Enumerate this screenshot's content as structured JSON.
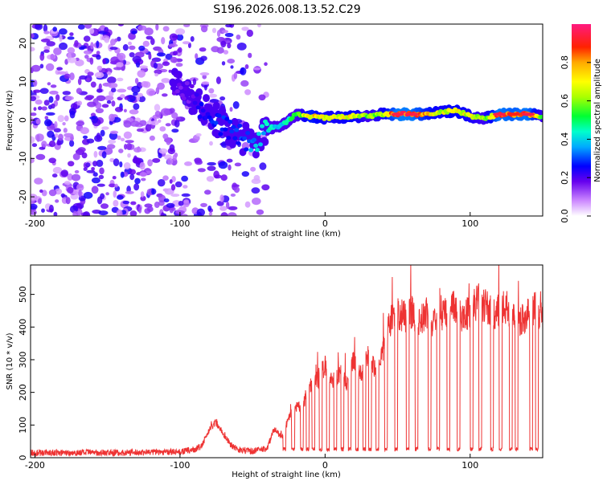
{
  "title": "S196.2026.008.13.52.C29",
  "chart_data": [
    {
      "type": "heatmap",
      "title": "S196.2026.008.13.52.C29",
      "xlabel": "Height of straight line (km)",
      "ylabel": "Frequency (Hz)",
      "xlim": [
        -203,
        150
      ],
      "ylim": [
        -25,
        25
      ],
      "x_ticks": [
        "-200",
        "-100",
        "0",
        "100"
      ],
      "x_tick_values": [
        -200,
        -100,
        0,
        100
      ],
      "y_ticks": [
        "20",
        "10",
        "0",
        "-10",
        "-20"
      ],
      "y_tick_values": [
        20,
        10,
        0,
        -10,
        -20
      ],
      "colorbar": {
        "label": "Normalized spectral amplitude",
        "range": [
          0,
          1
        ],
        "ticks": [
          "0.0",
          "0.2",
          "0.4",
          "0.6",
          "0.8"
        ],
        "tick_values": [
          0.0,
          0.2,
          0.4,
          0.6,
          0.8
        ]
      },
      "noise_region": {
        "x_range": [
          -203,
          -40
        ],
        "frequency_range": [
          -25,
          25
        ],
        "amplitude_range": [
          0.05,
          0.25
        ]
      },
      "track": [
        {
          "x": -105,
          "frequency": 9,
          "amplitude": 0.2
        },
        {
          "x": -95,
          "frequency": 8,
          "amplitude": 0.18
        },
        {
          "x": -85,
          "frequency": 3,
          "amplitude": 0.25
        },
        {
          "x": -75,
          "frequency": 0,
          "amplitude": 0.3
        },
        {
          "x": -65,
          "frequency": -3,
          "amplitude": 0.3
        },
        {
          "x": -55,
          "frequency": -5,
          "amplitude": 0.3
        },
        {
          "x": -48,
          "frequency": -6,
          "amplitude": 0.4
        },
        {
          "x": -38,
          "frequency": -2,
          "amplitude": 0.45
        },
        {
          "x": -30,
          "frequency": -1.5,
          "amplitude": 0.45
        },
        {
          "x": -20,
          "frequency": 1.5,
          "amplitude": 0.55
        },
        {
          "x": -10,
          "frequency": 1,
          "amplitude": 0.8
        },
        {
          "x": 0,
          "frequency": 0.5,
          "amplitude": 0.7
        },
        {
          "x": 10,
          "frequency": 0.8,
          "amplitude": 0.7
        },
        {
          "x": 20,
          "frequency": 1,
          "amplitude": 0.75
        },
        {
          "x": 30,
          "frequency": 1,
          "amplitude": 0.6
        },
        {
          "x": 40,
          "frequency": 1.5,
          "amplitude": 0.7
        },
        {
          "x": 50,
          "frequency": 1.5,
          "amplitude": 0.95
        },
        {
          "x": 60,
          "frequency": 1.5,
          "amplitude": 0.95
        },
        {
          "x": 70,
          "frequency": 1.5,
          "amplitude": 0.8
        },
        {
          "x": 80,
          "frequency": 2,
          "amplitude": 0.7
        },
        {
          "x": 90,
          "frequency": 2.5,
          "amplitude": 0.75
        },
        {
          "x": 100,
          "frequency": 1,
          "amplitude": 0.7
        },
        {
          "x": 110,
          "frequency": 0.5,
          "amplitude": 0.6
        },
        {
          "x": 120,
          "frequency": 1.5,
          "amplitude": 0.95
        },
        {
          "x": 130,
          "frequency": 1.5,
          "amplitude": 0.9
        },
        {
          "x": 140,
          "frequency": 1.5,
          "amplitude": 0.95
        },
        {
          "x": 150,
          "frequency": 1,
          "amplitude": 0.6
        }
      ]
    },
    {
      "type": "line",
      "xlabel": "Height of straight line (km)",
      "ylabel": "SNR (10 * v/v)",
      "xlim": [
        -203,
        150
      ],
      "ylim": [
        0,
        590
      ],
      "x_ticks": [
        "-200",
        "-100",
        "0",
        "100"
      ],
      "x_tick_values": [
        -200,
        -100,
        0,
        100
      ],
      "y_ticks": [
        "0",
        "100",
        "200",
        "300",
        "400",
        "500"
      ],
      "y_tick_values": [
        0,
        100,
        200,
        300,
        400,
        500
      ],
      "series": [
        {
          "name": "SNR",
          "color": "#ee3333",
          "x": [
            -203,
            -180,
            -160,
            -140,
            -120,
            -100,
            -90,
            -85,
            -80,
            -75,
            -70,
            -65,
            -60,
            -50,
            -40,
            -35,
            -30,
            -25,
            -20,
            -15,
            -10,
            -5,
            0,
            5,
            10,
            15,
            20,
            25,
            30,
            35,
            40,
            45,
            50,
            55,
            60,
            65,
            70,
            75,
            80,
            85,
            90,
            95,
            100,
            105,
            110,
            115,
            120,
            125,
            130,
            135,
            140,
            145,
            150
          ],
          "values": [
            15,
            15,
            16,
            15,
            17,
            18,
            25,
            35,
            85,
            110,
            70,
            40,
            25,
            20,
            28,
            90,
            60,
            120,
            150,
            170,
            220,
            240,
            280,
            230,
            260,
            230,
            300,
            250,
            320,
            270,
            330,
            420,
            440,
            430,
            450,
            420,
            440,
            410,
            430,
            450,
            460,
            430,
            450,
            480,
            470,
            440,
            450,
            460,
            430,
            420,
            440,
            460,
            420
          ],
          "dropouts": {
            "value": 20,
            "x": [
              -28,
              -22,
              -16,
              -12,
              -8,
              -3,
              2,
              7,
              12,
              17,
              22,
              27,
              31,
              36,
              42,
              49,
              57,
              63,
              72,
              78,
              85,
              92,
              101,
              107,
              115,
              121,
              128,
              132,
              142,
              146
            ]
          }
        }
      ]
    }
  ]
}
